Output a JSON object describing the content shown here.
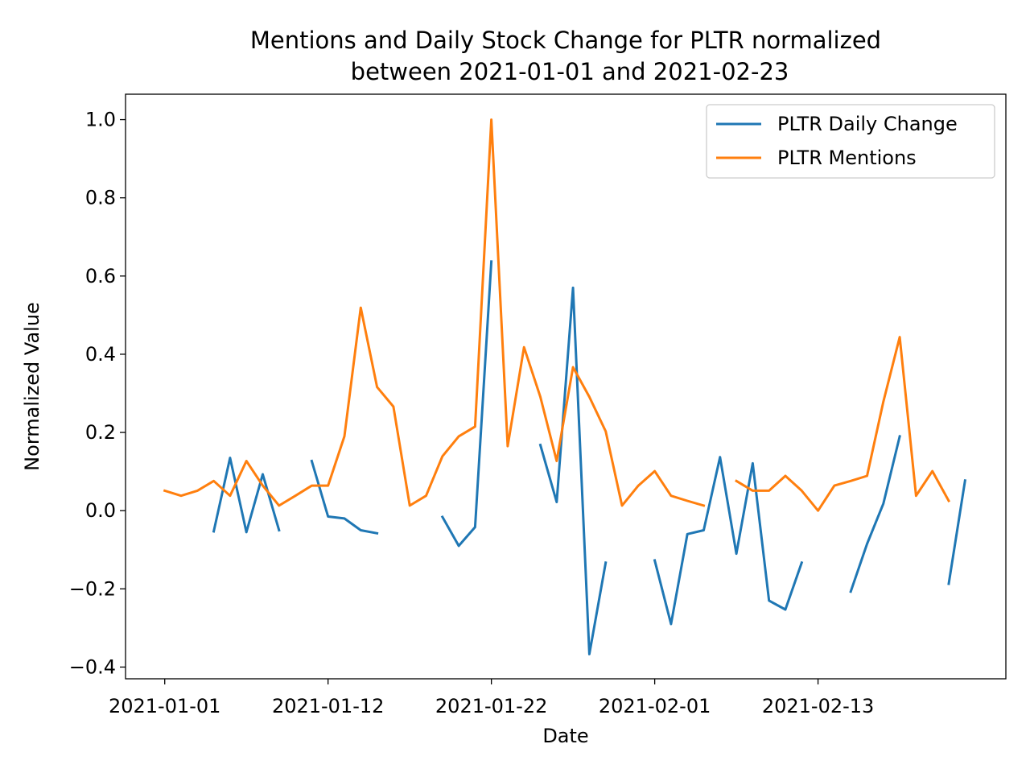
{
  "chart_data": {
    "type": "line",
    "title_line1": "Mentions and Daily Stock Change for PLTR normalized",
    "title_line2": "between 2021-01-01 and 2021-02-23",
    "xlabel": "Date",
    "ylabel": "Normalized Value",
    "ylim": [
      -0.43,
      1.065
    ],
    "y_ticks": [
      -0.4,
      -0.2,
      0.0,
      0.2,
      0.4,
      0.6,
      0.8,
      1.0
    ],
    "y_tick_labels": [
      "−0.4",
      "−0.2",
      "0.0",
      "0.2",
      "0.4",
      "0.6",
      "0.8",
      "1.0"
    ],
    "x_ticks": [
      0,
      10,
      20,
      30,
      40
    ],
    "x_tick_labels": [
      "2021-01-01",
      "2021-01-12",
      "2021-01-22",
      "2021-02-01",
      "2021-02-13"
    ],
    "xlim": [
      -2.4,
      51.5
    ],
    "grid": false,
    "legend_position": "upper right",
    "series": [
      {
        "name": "PLTR Daily Change",
        "color": "#1f77b4",
        "x": [
          0,
          1,
          2,
          3,
          4,
          5,
          6,
          7,
          8,
          9,
          10,
          11,
          12,
          13,
          14,
          15,
          16,
          17,
          18,
          19,
          20,
          21,
          22,
          23,
          24,
          25,
          26,
          27,
          28,
          29,
          30,
          31,
          32,
          33,
          34,
          35,
          36,
          37,
          38,
          39,
          40,
          41,
          42,
          43,
          44,
          45,
          46,
          47,
          48,
          49
        ],
        "values": [
          null,
          null,
          null,
          -0.053,
          0.135,
          -0.055,
          0.093,
          -0.05,
          null,
          0.127,
          -0.015,
          -0.02,
          -0.05,
          -0.058,
          null,
          null,
          null,
          -0.016,
          -0.09,
          -0.042,
          0.637,
          null,
          null,
          0.168,
          0.022,
          0.57,
          -0.367,
          -0.133,
          null,
          null,
          -0.127,
          -0.29,
          -0.06,
          -0.05,
          0.137,
          -0.11,
          0.121,
          -0.23,
          -0.253,
          -0.133,
          null,
          null,
          -0.207,
          -0.085,
          0.018,
          0.19,
          null,
          null,
          -0.187,
          0.077
        ]
      },
      {
        "name": "PLTR Mentions",
        "color": "#ff7f0e",
        "x": [
          0,
          1,
          2,
          3,
          4,
          5,
          6,
          7,
          8,
          9,
          10,
          11,
          12,
          13,
          14,
          15,
          16,
          17,
          18,
          19,
          20,
          21,
          22,
          23,
          24,
          25,
          26,
          27,
          28,
          29,
          30,
          31,
          32,
          33,
          34,
          35,
          36,
          37,
          38,
          39,
          40,
          41,
          42,
          43,
          44,
          45,
          46,
          47,
          48,
          49
        ],
        "values": [
          0.051,
          0.038,
          0.051,
          0.076,
          0.038,
          0.127,
          0.064,
          0.013,
          0.038,
          0.064,
          0.064,
          0.19,
          0.519,
          0.316,
          0.266,
          0.013,
          0.038,
          0.139,
          0.19,
          0.215,
          1.0,
          0.165,
          0.418,
          0.291,
          0.127,
          0.367,
          0.291,
          0.203,
          0.013,
          0.064,
          0.101,
          0.038,
          0.025,
          0.013,
          null,
          0.076,
          0.051,
          0.051,
          0.089,
          0.051,
          0.0,
          0.064,
          0.076,
          0.089,
          0.279,
          0.444,
          0.038,
          0.101,
          0.025,
          null
        ]
      }
    ]
  }
}
